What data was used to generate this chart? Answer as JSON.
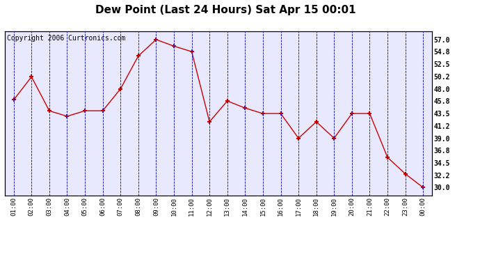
{
  "title": "Dew Point (Last 24 Hours) Sat Apr 15 00:01",
  "copyright_text": "Copyright 2006 Curtronics.com",
  "x_labels": [
    "01:00",
    "02:00",
    "03:00",
    "04:00",
    "05:00",
    "06:00",
    "07:00",
    "08:00",
    "09:00",
    "10:00",
    "11:00",
    "12:00",
    "13:00",
    "14:00",
    "15:00",
    "16:00",
    "17:00",
    "18:00",
    "19:00",
    "20:00",
    "21:00",
    "22:00",
    "23:00",
    "00:00"
  ],
  "y_values": [
    46.0,
    50.2,
    44.0,
    43.0,
    44.0,
    44.0,
    48.0,
    54.0,
    57.0,
    55.8,
    54.8,
    42.0,
    45.8,
    44.5,
    43.5,
    43.5,
    39.0,
    42.0,
    39.0,
    43.5,
    43.5,
    35.5,
    32.5,
    30.0
  ],
  "line_color": "#cc0000",
  "marker": "+",
  "marker_color": "#cc0000",
  "background_color": "#ffffff",
  "plot_bg_color": "#e8e8ff",
  "grid_color": "#0000cc",
  "text_color": "#000000",
  "title_fontsize": 11,
  "y_ticks": [
    30.0,
    32.2,
    34.5,
    36.8,
    39.0,
    41.2,
    43.5,
    45.8,
    48.0,
    50.2,
    52.5,
    54.8,
    57.0
  ],
  "ylim": [
    28.5,
    58.5
  ],
  "copyright_fontsize": 7
}
